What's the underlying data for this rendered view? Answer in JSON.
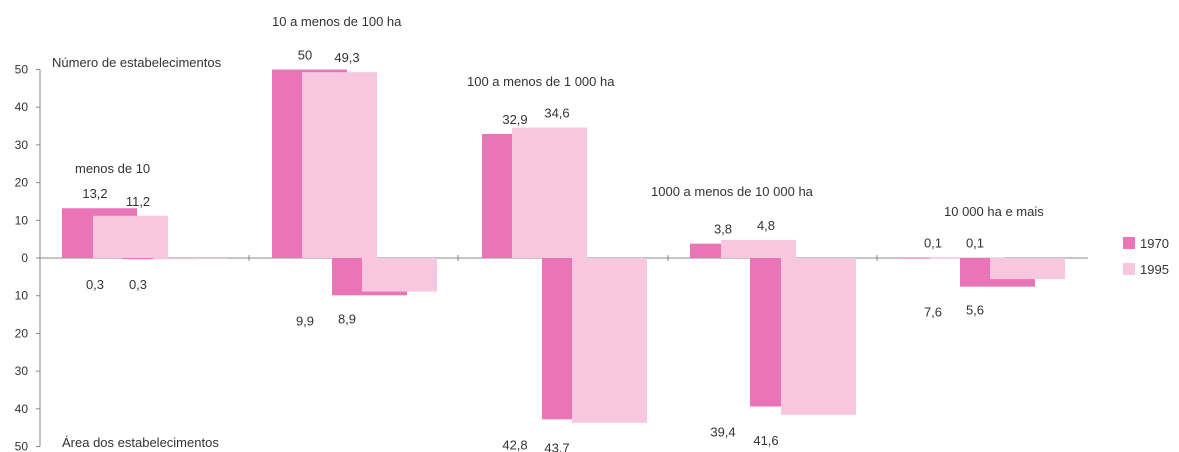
{
  "chart_data": {
    "type": "bar",
    "top_title": "Número de estabelecimentos",
    "bottom_title": "Área  dos estabelecimentos",
    "categories": [
      "menos de 10",
      "10 a menos de 100 ha",
      "100 a menos de 1 000 ha",
      "1000 a  menos de 10  000 ha",
      "10  000 ha e mais"
    ],
    "y_tick_labels": [
      "50",
      "40",
      "30",
      "20",
      "10",
      "0",
      "10",
      "20",
      "30",
      "40",
      "50"
    ],
    "ylim": [
      -50,
      50
    ],
    "legend_position": "right",
    "colors": {
      "1970": "#e975b7",
      "1995": "#f7c6df"
    },
    "series": [
      {
        "name": "1970",
        "number_of_establishments": [
          13.2,
          50,
          32.9,
          3.8,
          0.1
        ],
        "area_of_establishments": [
          0.3,
          9.9,
          42.8,
          39.4,
          7.6
        ]
      },
      {
        "name": "1995",
        "number_of_establishments": [
          11.2,
          49.3,
          34.6,
          4.8,
          0.1
        ],
        "area_of_establishments": [
          0.3,
          8.9,
          43.7,
          41.6,
          5.6
        ]
      }
    ],
    "number_labels": [
      [
        "13,2",
        "11,2"
      ],
      [
        "50",
        "49,3"
      ],
      [
        "32,9",
        "34,6"
      ],
      [
        "3,8",
        "4,8"
      ],
      [
        "0,1",
        "0,1"
      ]
    ],
    "area_labels": [
      [
        "0,3",
        "0,3"
      ],
      [
        "9,9",
        "8,9"
      ],
      [
        "42,8",
        "43,7"
      ],
      [
        "39,4",
        "41,6"
      ],
      [
        "7,6",
        "5,6"
      ]
    ]
  }
}
